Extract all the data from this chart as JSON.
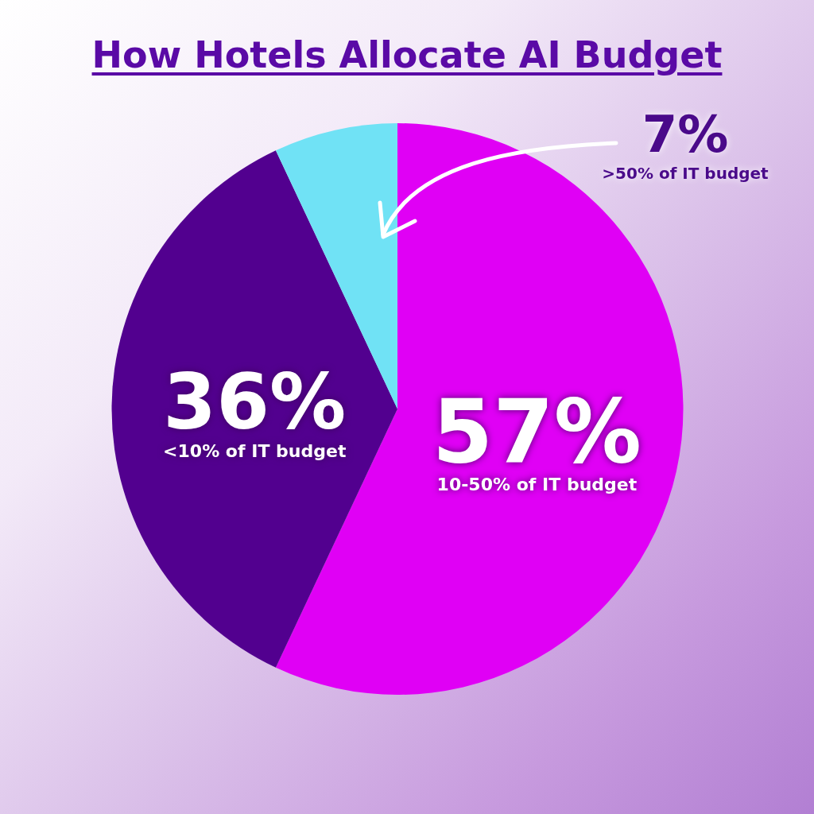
{
  "chart_data": {
    "type": "pie",
    "title": "How Hotels Allocate AI Budget",
    "categories": [
      "10-50% of IT budget",
      "<10% of IT budget",
      ">50% of IT budget"
    ],
    "values": [
      57,
      36,
      7
    ],
    "colors": [
      "#e000f5",
      "#52008f",
      "#70e2f5"
    ],
    "value_labels": [
      "57%",
      "36%",
      "7%"
    ]
  }
}
